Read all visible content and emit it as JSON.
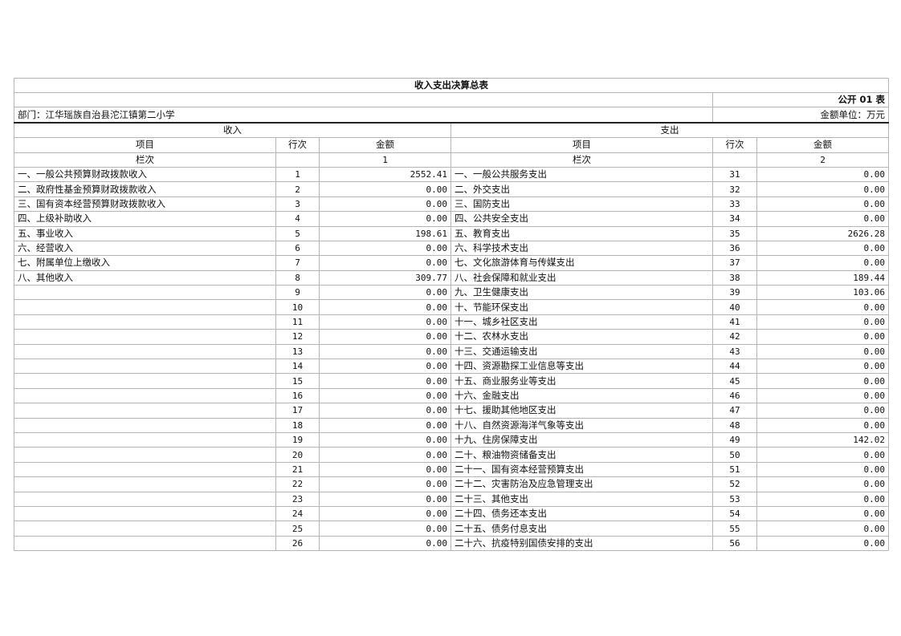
{
  "title": "收入支出决算总表",
  "form_no": "公开 01 表",
  "department": "部门：江华瑶族自治县沱江镇第二小学",
  "unit": "金额单位：万元",
  "income_header": "收入",
  "expense_header": "支出",
  "col_item": "项目",
  "col_line": "行次",
  "col_amount": "金额",
  "col_seq_label": "栏次",
  "income_col_no": "1",
  "expense_col_no": "2",
  "rows": [
    {
      "in_item": "一、一般公共预算财政拨款收入",
      "in_line": "1",
      "in_amt": "2552.41",
      "ex_item": "一、一般公共服务支出",
      "ex_line": "31",
      "ex_amt": "0.00"
    },
    {
      "in_item": "二、政府性基金预算财政拨款收入",
      "in_line": "2",
      "in_amt": "0.00",
      "ex_item": "二、外交支出",
      "ex_line": "32",
      "ex_amt": "0.00"
    },
    {
      "in_item": "三、国有资本经营预算财政拨款收入",
      "in_line": "3",
      "in_amt": "0.00",
      "ex_item": "三、国防支出",
      "ex_line": "33",
      "ex_amt": "0.00"
    },
    {
      "in_item": "四、上级补助收入",
      "in_line": "4",
      "in_amt": "0.00",
      "ex_item": "四、公共安全支出",
      "ex_line": "34",
      "ex_amt": "0.00"
    },
    {
      "in_item": "五、事业收入",
      "in_line": "5",
      "in_amt": "198.61",
      "ex_item": "五、教育支出",
      "ex_line": "35",
      "ex_amt": "2626.28"
    },
    {
      "in_item": "六、经营收入",
      "in_line": "6",
      "in_amt": "0.00",
      "ex_item": "六、科学技术支出",
      "ex_line": "36",
      "ex_amt": "0.00"
    },
    {
      "in_item": "七、附属单位上缴收入",
      "in_line": "7",
      "in_amt": "0.00",
      "ex_item": "七、文化旅游体育与传媒支出",
      "ex_line": "37",
      "ex_amt": "0.00"
    },
    {
      "in_item": "八、其他收入",
      "in_line": "8",
      "in_amt": "309.77",
      "ex_item": "八、社会保障和就业支出",
      "ex_line": "38",
      "ex_amt": "189.44"
    },
    {
      "in_item": "",
      "in_line": "9",
      "in_amt": "0.00",
      "ex_item": "九、卫生健康支出",
      "ex_line": "39",
      "ex_amt": "103.06"
    },
    {
      "in_item": "",
      "in_line": "10",
      "in_amt": "0.00",
      "ex_item": "十、节能环保支出",
      "ex_line": "40",
      "ex_amt": "0.00"
    },
    {
      "in_item": "",
      "in_line": "11",
      "in_amt": "0.00",
      "ex_item": "十一、城乡社区支出",
      "ex_line": "41",
      "ex_amt": "0.00"
    },
    {
      "in_item": "",
      "in_line": "12",
      "in_amt": "0.00",
      "ex_item": "十二、农林水支出",
      "ex_line": "42",
      "ex_amt": "0.00"
    },
    {
      "in_item": "",
      "in_line": "13",
      "in_amt": "0.00",
      "ex_item": "十三、交通运输支出",
      "ex_line": "43",
      "ex_amt": "0.00"
    },
    {
      "in_item": "",
      "in_line": "14",
      "in_amt": "0.00",
      "ex_item": "十四、资源勘探工业信息等支出",
      "ex_line": "44",
      "ex_amt": "0.00"
    },
    {
      "in_item": "",
      "in_line": "15",
      "in_amt": "0.00",
      "ex_item": "十五、商业服务业等支出",
      "ex_line": "45",
      "ex_amt": "0.00"
    },
    {
      "in_item": "",
      "in_line": "16",
      "in_amt": "0.00",
      "ex_item": "十六、金融支出",
      "ex_line": "46",
      "ex_amt": "0.00"
    },
    {
      "in_item": "",
      "in_line": "17",
      "in_amt": "0.00",
      "ex_item": "十七、援助其他地区支出",
      "ex_line": "47",
      "ex_amt": "0.00"
    },
    {
      "in_item": "",
      "in_line": "18",
      "in_amt": "0.00",
      "ex_item": "十八、自然资源海洋气象等支出",
      "ex_line": "48",
      "ex_amt": "0.00"
    },
    {
      "in_item": "",
      "in_line": "19",
      "in_amt": "0.00",
      "ex_item": "十九、住房保障支出",
      "ex_line": "49",
      "ex_amt": "142.02"
    },
    {
      "in_item": "",
      "in_line": "20",
      "in_amt": "0.00",
      "ex_item": "二十、粮油物资储备支出",
      "ex_line": "50",
      "ex_amt": "0.00"
    },
    {
      "in_item": "",
      "in_line": "21",
      "in_amt": "0.00",
      "ex_item": "二十一、国有资本经营预算支出",
      "ex_line": "51",
      "ex_amt": "0.00"
    },
    {
      "in_item": "",
      "in_line": "22",
      "in_amt": "0.00",
      "ex_item": "二十二、灾害防治及应急管理支出",
      "ex_line": "52",
      "ex_amt": "0.00"
    },
    {
      "in_item": "",
      "in_line": "23",
      "in_amt": "0.00",
      "ex_item": "二十三、其他支出",
      "ex_line": "53",
      "ex_amt": "0.00"
    },
    {
      "in_item": "",
      "in_line": "24",
      "in_amt": "0.00",
      "ex_item": "二十四、债务还本支出",
      "ex_line": "54",
      "ex_amt": "0.00"
    },
    {
      "in_item": "",
      "in_line": "25",
      "in_amt": "0.00",
      "ex_item": "二十五、债务付息支出",
      "ex_line": "55",
      "ex_amt": "0.00"
    },
    {
      "in_item": "",
      "in_line": "26",
      "in_amt": "0.00",
      "ex_item": "二十六、抗疫特别国债安排的支出",
      "ex_line": "56",
      "ex_amt": "0.00"
    }
  ]
}
